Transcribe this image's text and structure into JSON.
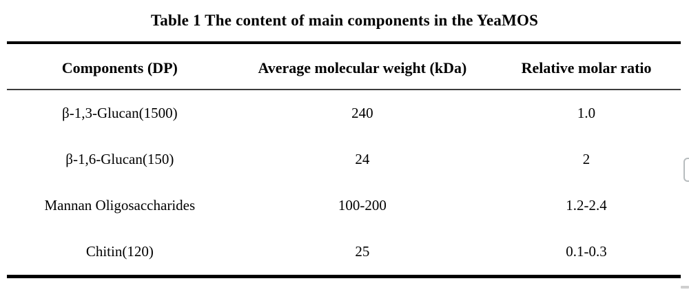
{
  "caption": "Table 1 The content of main components in the YeaMOS",
  "table": {
    "columns": [
      "Components (DP)",
      "Average molecular weight (kDa)",
      "Relative molar ratio"
    ],
    "rows": [
      [
        "β-1,3-Glucan(1500)",
        "240",
        "1.0"
      ],
      [
        "β-1,6-Glucan(150)",
        "24",
        "2"
      ],
      [
        "Mannan Oligosaccharides",
        "100-200",
        "1.2-2.4"
      ],
      [
        "Chitin(120)",
        "25",
        "0.1-0.3"
      ]
    ]
  },
  "chart_data": {
    "type": "table",
    "title": "Table 1 The content of main components in the YeaMOS",
    "columns": [
      "Components (DP)",
      "Average molecular weight (kDa)",
      "Relative molar ratio"
    ],
    "rows": [
      [
        "β-1,3-Glucan(1500)",
        "240",
        "1.0"
      ],
      [
        "β-1,6-Glucan(150)",
        "24",
        "2"
      ],
      [
        "Mannan Oligosaccharides",
        "100-200",
        "1.2-2.4"
      ],
      [
        "Chitin(120)",
        "25",
        "0.1-0.3"
      ]
    ]
  },
  "colors": {
    "background": "#ffffff",
    "text": "#000000",
    "thick_rule": "#000000",
    "thin_rule": "#3c3c3c",
    "artifact_border": "#b7bcbe"
  }
}
